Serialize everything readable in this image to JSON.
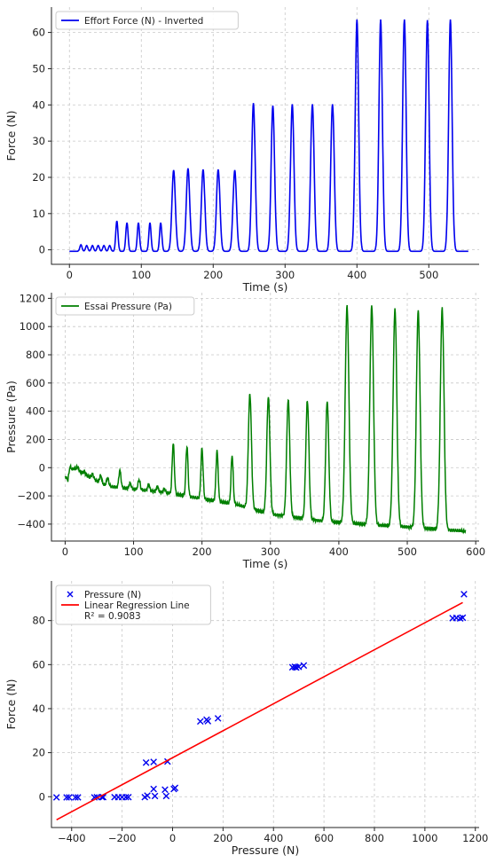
{
  "chart_data": [
    {
      "type": "line",
      "xlabel": "Time (s)",
      "ylabel": "Force (N)",
      "xlim": [
        -25,
        570
      ],
      "ylim": [
        -4,
        67
      ],
      "xticks": [
        "0",
        "100",
        "200",
        "300",
        "400",
        "500"
      ],
      "yticks": [
        "0",
        "10",
        "20",
        "30",
        "40",
        "50",
        "60"
      ],
      "grid": true,
      "legend_position": "top-left",
      "series": [
        {
          "name": "Effort Force (N) - Inverted",
          "color": "#0000ee",
          "baseline": -0.4,
          "start": 0,
          "end": 555,
          "peaks": [
            [
              16,
              1.4
            ],
            [
              24,
              1.2
            ],
            [
              32,
              1.2
            ],
            [
              40,
              1.2
            ],
            [
              48,
              1.2
            ],
            [
              56,
              1.2
            ],
            [
              66,
              8.0
            ],
            [
              80,
              7.5
            ],
            [
              96,
              7.5
            ],
            [
              112,
              7.5
            ],
            [
              127,
              7.5
            ],
            [
              145,
              22.0
            ],
            [
              165,
              22.5
            ],
            [
              186,
              22.2
            ],
            [
              207,
              22.2
            ],
            [
              230,
              22.0
            ],
            [
              256,
              40.5
            ],
            [
              283,
              39.8
            ],
            [
              310,
              40.2
            ],
            [
              338,
              40.2
            ],
            [
              366,
              40.2
            ],
            [
              400,
              63.6
            ],
            [
              433,
              63.6
            ],
            [
              466,
              63.6
            ],
            [
              498,
              63.4
            ],
            [
              530,
              63.6
            ]
          ]
        }
      ]
    },
    {
      "type": "line",
      "xlabel": "Time (s)",
      "ylabel": "Pressure (Pa)",
      "xlim": [
        -20,
        605
      ],
      "ylim": [
        -520,
        1240
      ],
      "xticks": [
        "0",
        "100",
        "200",
        "300",
        "400",
        "500",
        "600"
      ],
      "yticks": [
        "−400",
        "−200",
        "0",
        "200",
        "400",
        "600",
        "800",
        "1000",
        "1200"
      ],
      "grid": true,
      "legend_position": "top-left",
      "series": [
        {
          "name": "Essai Pressure (Pa)",
          "color": "#007f00",
          "start": 0,
          "end": 585,
          "baseline_points": [
            [
              0,
              -60
            ],
            [
              4,
              -90
            ],
            [
              7,
              10
            ],
            [
              60,
              -130
            ],
            [
              150,
              -180
            ],
            [
              250,
              -260
            ],
            [
              300,
              -330
            ],
            [
              380,
              -380
            ],
            [
              585,
              -450
            ]
          ],
          "peaks": [
            [
              10,
              -10
            ],
            [
              18,
              5
            ],
            [
              28,
              -30
            ],
            [
              40,
              -45
            ],
            [
              52,
              -55
            ],
            [
              62,
              -70
            ],
            [
              80,
              -20
            ],
            [
              95,
              -110
            ],
            [
              108,
              -85
            ],
            [
              122,
              -120
            ],
            [
              135,
              -135
            ],
            [
              145,
              -150
            ],
            [
              158,
              175
            ],
            [
              178,
              150
            ],
            [
              200,
              140
            ],
            [
              222,
              120
            ],
            [
              244,
              85
            ],
            [
              270,
              525
            ],
            [
              297,
              505
            ],
            [
              326,
              485
            ],
            [
              354,
              475
            ],
            [
              383,
              470
            ],
            [
              412,
              1150
            ],
            [
              448,
              1150
            ],
            [
              482,
              1130
            ],
            [
              516,
              1115
            ],
            [
              551,
              1130
            ]
          ]
        }
      ]
    },
    {
      "type": "scatter",
      "xlabel": "Pressure (N)",
      "ylabel": "Force (N)",
      "xlim": [
        -480,
        1215
      ],
      "ylim": [
        -14,
        98
      ],
      "xticks": [
        "−400",
        "−200",
        "0",
        "200",
        "400",
        "600",
        "800",
        "1000",
        "1200"
      ],
      "yticks": [
        "0",
        "20",
        "40",
        "60",
        "80"
      ],
      "grid": true,
      "legend_position": "top-left",
      "series": [
        {
          "name": "Pressure (N)",
          "color": "#0000ee",
          "marker": "x",
          "points": [
            [
              -460,
              -0.3
            ],
            [
              -420,
              -0.3
            ],
            [
              -410,
              -0.3
            ],
            [
              -385,
              -0.3
            ],
            [
              -375,
              -0.3
            ],
            [
              -310,
              -0.3
            ],
            [
              -300,
              -0.2
            ],
            [
              -280,
              -0.2
            ],
            [
              -275,
              -0.2
            ],
            [
              -230,
              -0.2
            ],
            [
              -215,
              -0.2
            ],
            [
              -200,
              -0.2
            ],
            [
              -185,
              -0.2
            ],
            [
              -175,
              -0.2
            ],
            [
              -110,
              -0.2
            ],
            [
              -100,
              0.5
            ],
            [
              -105,
              15.5
            ],
            [
              -75,
              15.8
            ],
            [
              -75,
              3.5
            ],
            [
              -70,
              0.3
            ],
            [
              -30,
              3.2
            ],
            [
              -25,
              0.3
            ],
            [
              -20,
              16.0
            ],
            [
              5,
              3.5
            ],
            [
              10,
              4.0
            ],
            [
              110,
              34.2
            ],
            [
              135,
              35.0
            ],
            [
              140,
              34.3
            ],
            [
              180,
              35.6
            ],
            [
              475,
              58.8
            ],
            [
              485,
              59.0
            ],
            [
              490,
              58.7
            ],
            [
              500,
              59.0
            ],
            [
              520,
              59.6
            ],
            [
              1110,
              81.1
            ],
            [
              1125,
              81.2
            ],
            [
              1140,
              81.0
            ],
            [
              1150,
              81.3
            ],
            [
              1155,
              92.0
            ]
          ]
        },
        {
          "name": "Linear Regression Line\nR² = 0.9083",
          "color": "#ff0000",
          "type": "line",
          "points": [
            [
              -460,
              -10.5
            ],
            [
              1150,
              88.2
            ]
          ]
        }
      ]
    }
  ]
}
